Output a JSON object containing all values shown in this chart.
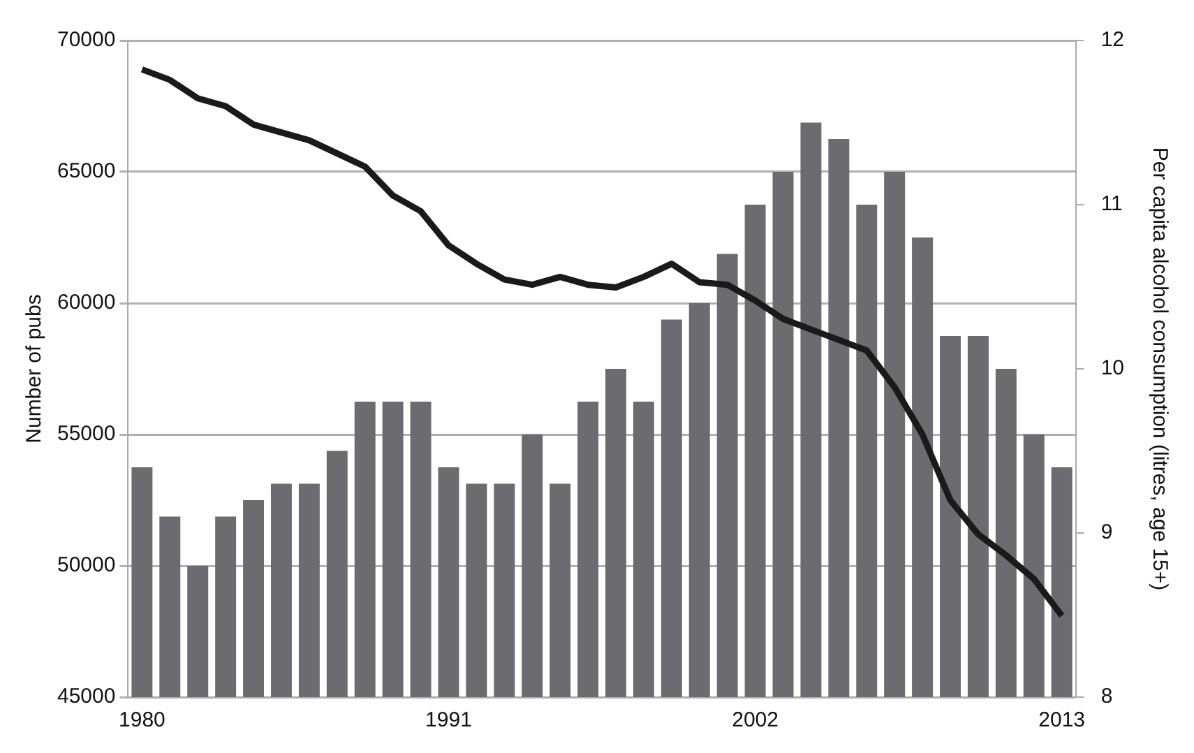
{
  "chart_data": {
    "type": "bar",
    "ylabel": "Number of pubs",
    "y2label": "Per capita alcohol consumption (litres, age 15+)",
    "categories": [
      "1980",
      null,
      null,
      null,
      null,
      null,
      null,
      null,
      null,
      null,
      null,
      "1991",
      null,
      null,
      null,
      null,
      null,
      null,
      null,
      null,
      null,
      null,
      "2002",
      null,
      null,
      null,
      null,
      null,
      null,
      null,
      null,
      null,
      null,
      "2013"
    ],
    "series": [
      {
        "axis": "y2",
        "color": "#6b6b70",
        "values": [
          9.4,
          9.1,
          8.8,
          9.1,
          9.2,
          9.3,
          9.3,
          9.5,
          9.8,
          9.8,
          9.8,
          9.4,
          9.3,
          9.3,
          9.6,
          9.3,
          9.8,
          10.0,
          9.8,
          10.3,
          10.4,
          10.7,
          11.0,
          11.2,
          11.5,
          11.4,
          11.0,
          11.2,
          10.8,
          10.2,
          10.2,
          10.0,
          9.6,
          9.4
        ]
      },
      {
        "type": "line",
        "axis": "y",
        "color": "#1a1a1a",
        "values": [
          68900,
          68500,
          67800,
          67500,
          66800,
          66500,
          66200,
          65700,
          65200,
          64100,
          63500,
          62200,
          61500,
          60900,
          60700,
          61000,
          60700,
          60600,
          61000,
          61500,
          60800,
          60700,
          60100,
          59400,
          59000,
          58600,
          58200,
          56800,
          55000,
          52500,
          51200,
          50400,
          49500,
          48100
        ]
      }
    ],
    "ylim": [
      45000,
      70000
    ],
    "yticks": [
      45000,
      50000,
      55000,
      60000,
      65000,
      70000
    ],
    "y2lim": [
      8,
      12
    ],
    "y2ticks": [
      8,
      9,
      10,
      11,
      12
    ],
    "grid": "y",
    "legend": false,
    "marker": "none",
    "line_style": "solid"
  }
}
